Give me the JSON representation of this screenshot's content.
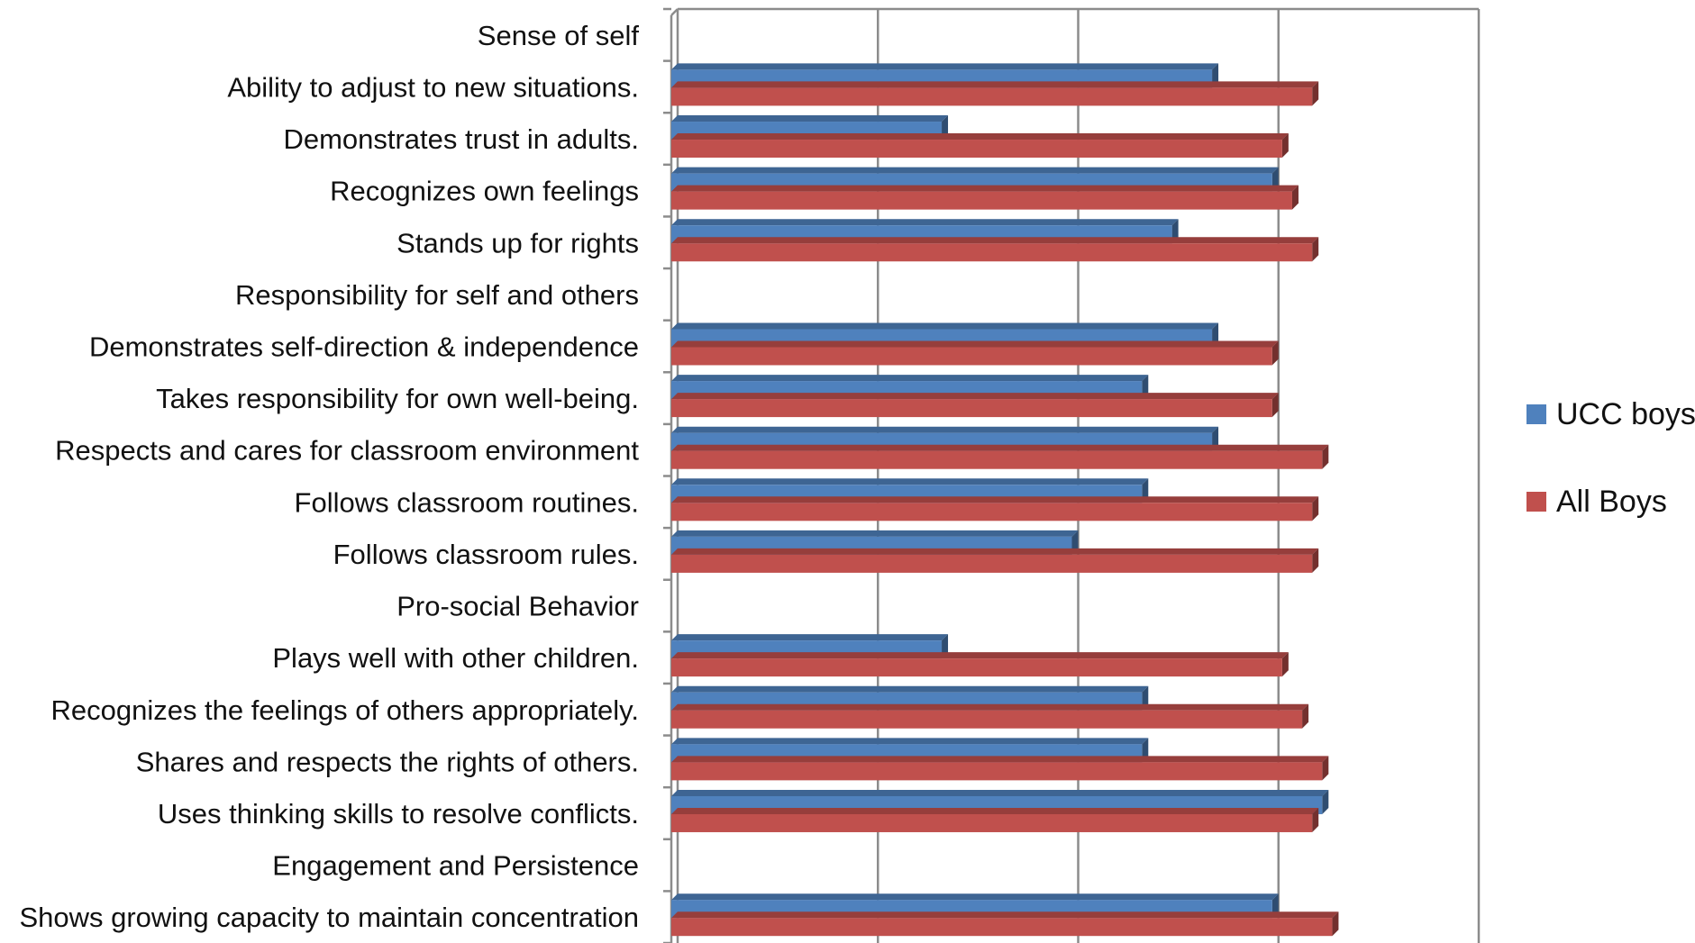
{
  "chart_data": {
    "type": "bar",
    "orientation": "horizontal",
    "categories": [
      "Sense of self",
      "Ability to adjust to new situations.",
      "Demonstrates trust in adults.",
      "Recognizes own feelings",
      "Stands up  for rights",
      "Responsibility  for self and others",
      "Demonstrates self-direction & independence",
      "Takes responsibility  for own well-being.",
      "Respects and cares for classroom  environment",
      "Follows classroom  routines.",
      "Follows classroom rules.",
      "Pro-social Behavior",
      "Plays well with other children.",
      "Recognizes the feelings  of others appropriately.",
      "Shares and respects the rights of others.",
      "Uses thinking skills  to resolve conflicts.",
      "Engagement and Persistence",
      "Shows growing capacity to maintain concentration"
    ],
    "series": [
      {
        "name": "UCC boys",
        "color": "#4F81BD",
        "values": [
          null,
          2.7,
          1.35,
          3.0,
          2.5,
          null,
          2.7,
          2.35,
          2.7,
          2.35,
          2.0,
          null,
          1.35,
          2.35,
          2.35,
          3.25,
          null,
          3.0
        ]
      },
      {
        "name": "All Boys",
        "color": "#C0504D",
        "values": [
          null,
          3.2,
          3.05,
          3.1,
          3.2,
          null,
          3.0,
          3.0,
          3.25,
          3.2,
          3.2,
          null,
          3.05,
          3.15,
          3.25,
          3.2,
          null,
          3.3
        ]
      }
    ],
    "xlim": [
      0,
      4
    ],
    "x_gridlines": [
      0,
      1,
      2,
      3,
      4
    ],
    "tick_labels_shown": false,
    "grid": true,
    "legend": "right"
  }
}
